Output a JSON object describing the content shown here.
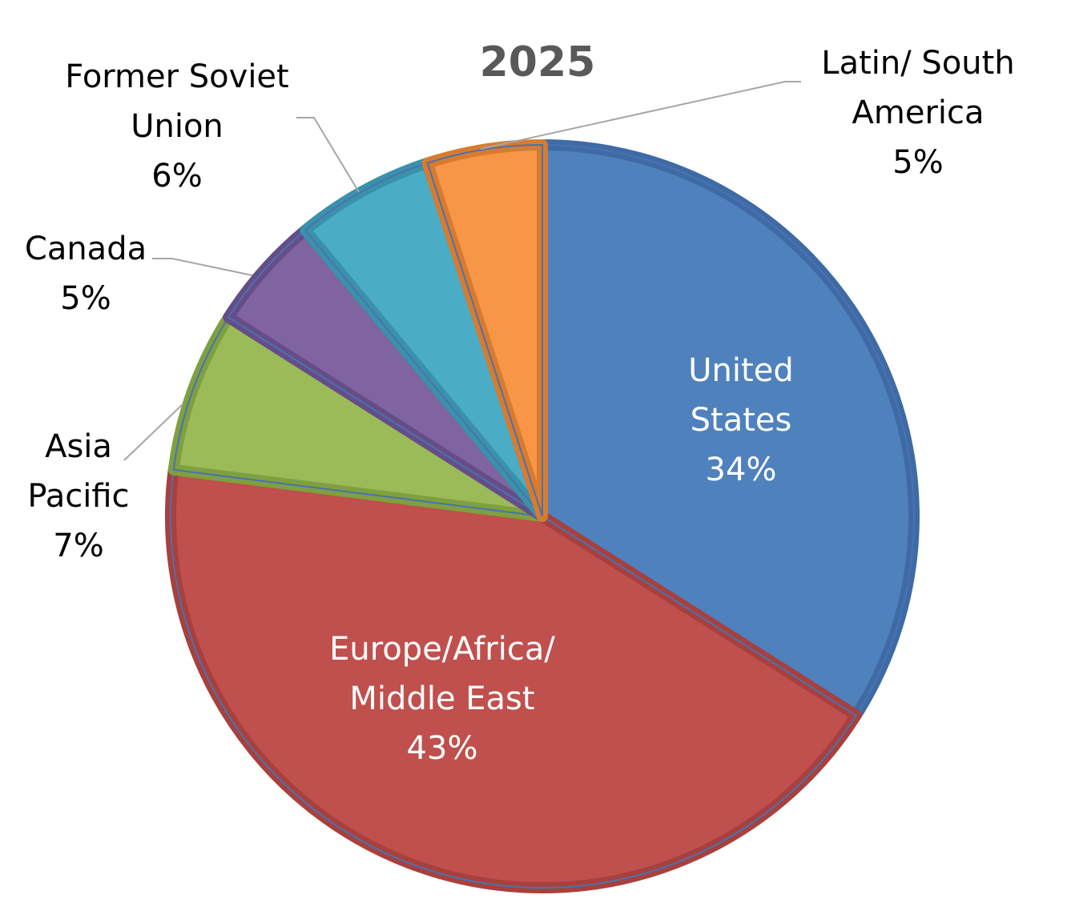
{
  "chart_data": {
    "type": "pie",
    "title": "2025",
    "slices": [
      {
        "label_lines": [
          "United",
          "States"
        ],
        "percent_label": "34%",
        "value": 34,
        "color": "#4F81BD",
        "edge": "#3E6BA6",
        "label_color": "#ffffff"
      },
      {
        "label_lines": [
          "Europe/Africa/",
          "Middle East"
        ],
        "percent_label": "43%",
        "value": 43,
        "color": "#C0504D",
        "edge": "#A8403D",
        "label_color": "#ffffff"
      },
      {
        "label_lines": [
          "Asia",
          "Pacific"
        ],
        "percent_label": "7%",
        "value": 7,
        "color": "#9BBB59",
        "edge": "#7FA040",
        "label_color": "#000000"
      },
      {
        "label_lines": [
          "Canada"
        ],
        "percent_label": "5%",
        "value": 5,
        "color": "#8064A2",
        "edge": "#664D87",
        "label_color": "#000000"
      },
      {
        "label_lines": [
          "Former Soviet",
          "Union"
        ],
        "percent_label": "6%",
        "value": 6,
        "color": "#4BACC6",
        "edge": "#3A92AA",
        "label_color": "#000000"
      },
      {
        "label_lines": [
          "Latin/ South",
          "America"
        ],
        "percent_label": "5%",
        "value": 5,
        "color": "#F79646",
        "edge": "#D97B2E",
        "label_color": "#000000"
      }
    ]
  }
}
